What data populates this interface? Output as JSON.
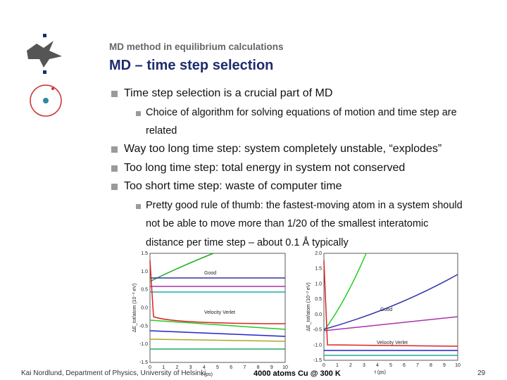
{
  "header": {
    "subtitle": "MD method in equilibrium calculations",
    "title": "MD – time step selection"
  },
  "bullets": [
    {
      "level": 1,
      "text": "Time step selection is a crucial part of MD"
    },
    {
      "level": 2,
      "text": "Choice of algorithm for solving equations of motion and time step are related"
    },
    {
      "level": 1,
      "text": "Way too long time step: system completely unstable, “explodes”"
    },
    {
      "level": 1,
      "text": "Too long time step: total energy in system not conserved"
    },
    {
      "level": 1,
      "text": "Too short time step: waste of computer time"
    },
    {
      "level": 2,
      "text": "Pretty good rule of thumb: the fastest-moving atom in a system should not be able to move more than 1/20 of the smallest interatomic distance per time step – about 0.1 Å typically"
    }
  ],
  "figures": [
    {
      "y_label": "ΔE_tot/atom (10⁻³ eV)",
      "x_label": "t (ps)",
      "yticks": [
        "1.5",
        "1.0",
        "0.5",
        "0.0",
        "-0.5",
        "-1.0",
        "-1.5"
      ],
      "xticks": [
        "0",
        "1",
        "2",
        "3",
        "4",
        "5",
        "6",
        "7",
        "8",
        "9",
        "10"
      ],
      "annotations": [
        "Good",
        "Velocity Verlet"
      ]
    },
    {
      "y_label": "ΔE_tot/atom (10⁻³ eV)",
      "x_label": "t (ps)",
      "yticks": [
        "2.0",
        "1.5",
        "1.0",
        "0.5",
        "0.0",
        "-0.5",
        "-1.0",
        "-1.5"
      ],
      "xticks": [
        "0",
        "1",
        "2",
        "3",
        "4",
        "5",
        "6",
        "7",
        "8",
        "9",
        "10"
      ],
      "annotations": [
        "Good",
        "Velocity Verlet"
      ]
    }
  ],
  "footer": {
    "author": "Kai Nordlund, Department of Physics, University of Helsinki",
    "caption": "4000 atoms Cu @ 300 K",
    "page": "29"
  }
}
